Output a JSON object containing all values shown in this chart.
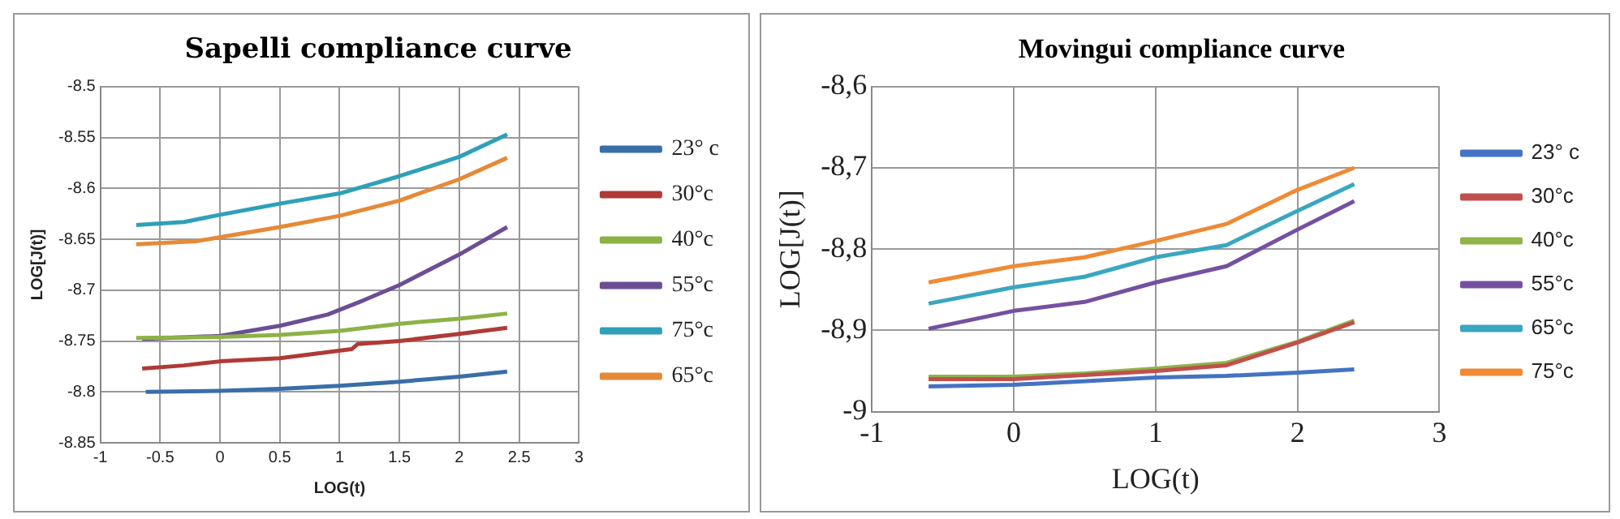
{
  "chart_data": [
    {
      "type": "line",
      "title": "Sapelli compliance curve",
      "xlabel": "LOG(t)",
      "ylabel": "LOG[J(t)]",
      "xlim": [
        -1,
        3
      ],
      "xticks": [
        -1,
        -0.5,
        0,
        0.5,
        1,
        1.5,
        2,
        2.5,
        3
      ],
      "ylim": [
        -8.85,
        -8.5
      ],
      "yticks": [
        -8.85,
        -8.8,
        -8.75,
        -8.7,
        -8.65,
        -8.6,
        -8.55,
        -8.5
      ],
      "grid": true,
      "legend": "right",
      "marker": "none",
      "line_style": "solid",
      "series": [
        {
          "name": "23° c",
          "color": "#3a6ea8",
          "x": [
            -0.62,
            0,
            0.5,
            1,
            1.5,
            2,
            2.4
          ],
          "values": [
            -8.8,
            -8.799,
            -8.797,
            -8.794,
            -8.79,
            -8.785,
            -8.78
          ]
        },
        {
          "name": "30°c",
          "color": "#b03a36",
          "x": [
            -0.65,
            -0.3,
            0,
            0.5,
            0.9,
            1.1,
            1.15,
            1.5,
            2,
            2.4
          ],
          "values": [
            -8.777,
            -8.774,
            -8.77,
            -8.767,
            -8.761,
            -8.758,
            -8.753,
            -8.75,
            -8.743,
            -8.737
          ]
        },
        {
          "name": "40°c",
          "color": "#8db246",
          "x": [
            -0.7,
            0,
            0.5,
            1,
            1.5,
            2,
            2.4
          ],
          "values": [
            -8.747,
            -8.746,
            -8.744,
            -8.74,
            -8.733,
            -8.728,
            -8.723
          ]
        },
        {
          "name": "55°c",
          "color": "#6c4e94",
          "x": [
            -0.65,
            0,
            0.5,
            0.9,
            1.2,
            1.5,
            2,
            2.4
          ],
          "values": [
            -8.748,
            -8.745,
            -8.735,
            -8.724,
            -8.71,
            -8.695,
            -8.665,
            -8.638
          ]
        },
        {
          "name": "75°c",
          "color": "#2fa0b8",
          "x": [
            -0.7,
            -0.3,
            0,
            0.5,
            1,
            1.5,
            2,
            2.4
          ],
          "values": [
            -8.636,
            -8.633,
            -8.626,
            -8.615,
            -8.605,
            -8.588,
            -8.569,
            -8.547
          ]
        },
        {
          "name": "65°c",
          "color": "#e58a38",
          "x": [
            -0.7,
            -0.2,
            0,
            0.5,
            1,
            1.5,
            2,
            2.4
          ],
          "values": [
            -8.655,
            -8.652,
            -8.648,
            -8.638,
            -8.627,
            -8.612,
            -8.591,
            -8.57
          ]
        }
      ]
    },
    {
      "type": "line",
      "title": "Movingui compliance curve",
      "xlabel": "LOG(t)",
      "ylabel": "LOG[J(t)]",
      "xlim": [
        -1,
        3
      ],
      "xticks": [
        -1,
        0,
        1,
        2,
        3
      ],
      "ylim": [
        -9,
        -8.6
      ],
      "yticks": [
        {
          "value": -9,
          "label": "-9"
        },
        {
          "value": -8.9,
          "label": "-8,9"
        },
        {
          "value": -8.8,
          "label": "-8,8"
        },
        {
          "value": -8.7,
          "label": "-8,7"
        },
        {
          "value": -8.6,
          "label": "-8,6"
        }
      ],
      "grid": true,
      "legend": "right",
      "marker": "none",
      "line_style": "solid",
      "series": [
        {
          "name": "23° c",
          "color": "#4472c4",
          "x": [
            -0.6,
            0,
            1,
            1.5,
            2,
            2.4
          ],
          "values": [
            -8.969,
            -8.967,
            -8.958,
            -8.956,
            -8.952,
            -8.948
          ]
        },
        {
          "name": "30°c",
          "color": "#c0504d",
          "x": [
            -0.6,
            0,
            1,
            1.5,
            2,
            2.4
          ],
          "values": [
            -8.96,
            -8.96,
            -8.95,
            -8.943,
            -8.915,
            -8.89
          ]
        },
        {
          "name": "40°c",
          "color": "#8fb44a",
          "x": [
            -0.6,
            0,
            0.5,
            1,
            1.5,
            2,
            2.4
          ],
          "values": [
            -8.957,
            -8.957,
            -8.953,
            -8.947,
            -8.94,
            -8.914,
            -8.888
          ]
        },
        {
          "name": "55°c",
          "color": "#7650a0",
          "x": [
            -0.6,
            0,
            0.5,
            1,
            1.5,
            2,
            2.4
          ],
          "values": [
            -8.898,
            -8.876,
            -8.865,
            -8.841,
            -8.821,
            -8.776,
            -8.741
          ]
        },
        {
          "name": "65°c",
          "color": "#3aa6c0",
          "x": [
            -0.6,
            0,
            0.5,
            1,
            1.5,
            2,
            2.4
          ],
          "values": [
            -8.867,
            -8.847,
            -8.834,
            -8.81,
            -8.795,
            -8.753,
            -8.72
          ]
        },
        {
          "name": "75°c",
          "color": "#ef8a35",
          "x": [
            -0.6,
            0,
            0.5,
            1,
            1.5,
            2,
            2.4
          ],
          "values": [
            -8.841,
            -8.821,
            -8.81,
            -8.79,
            -8.769,
            -8.727,
            -8.7
          ]
        }
      ]
    }
  ]
}
